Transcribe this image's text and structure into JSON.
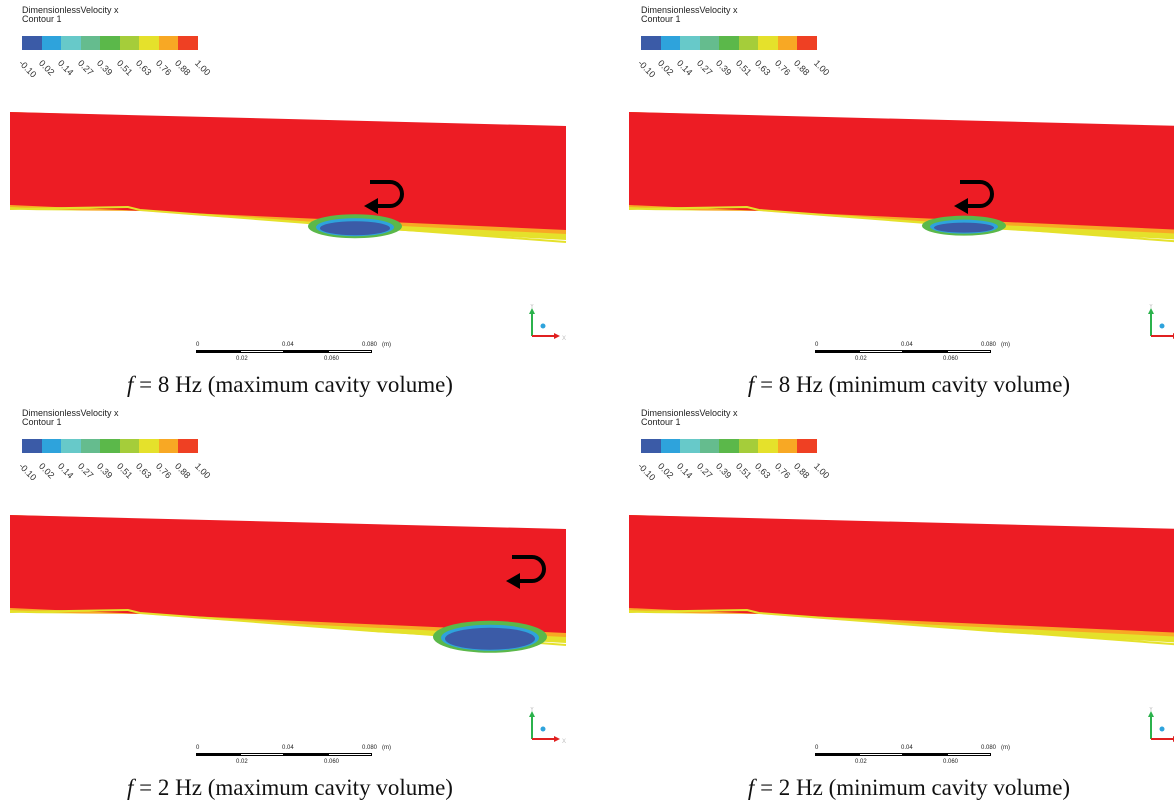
{
  "colorbar": {
    "colors": [
      "#3b5ba7",
      "#2ea3dc",
      "#67c9c9",
      "#65bc8e",
      "#5bb84a",
      "#a5cd3a",
      "#e5e12b",
      "#f8a824",
      "#ef4023"
    ]
  },
  "panels": [
    {
      "legend_title": "DimensionlessVelocity x",
      "legend_subtitle": "Contour 1",
      "ticks": [
        "-0.10",
        "0.02",
        "0.14",
        "0.27",
        "0.39",
        "0.51",
        "0.63",
        "0.76",
        "0.88",
        "1.00"
      ],
      "scale_top": [
        "0",
        "0.04",
        "0.080",
        "(m)"
      ],
      "scale_bottom": [
        "0.02",
        "0.060"
      ],
      "caption_f": "f",
      "caption_text": " = 8 Hz (maximum cavity volume)",
      "arrow_icon": "return-arrow-icon",
      "cavity": "large"
    },
    {
      "legend_title": "DimensionlessVelocity x",
      "legend_subtitle": "Contour 1",
      "ticks": [
        "-0.10",
        "0.02",
        "0.14",
        "0.27",
        "0.39",
        "0.51",
        "0.63",
        "0.76",
        "0.88",
        "1.00"
      ],
      "scale_top": [
        "0",
        "0.04",
        "0.080",
        "(m)"
      ],
      "scale_bottom": [
        "0.02",
        "0.060"
      ],
      "caption_f": "f",
      "caption_text": " = 8 Hz (minimum cavity volume)",
      "arrow_icon": "return-arrow-icon",
      "cavity": "medium"
    },
    {
      "legend_title": "DimensionlessVelocity x",
      "legend_subtitle": "Contour 1",
      "ticks": [
        "-0.10",
        "0.02",
        "0.14",
        "0.27",
        "0.39",
        "0.51",
        "0.63",
        "0.76",
        "0.88",
        "1.00"
      ],
      "scale_top": [
        "0",
        "0.04",
        "0.080",
        "(m)"
      ],
      "scale_bottom": [
        "0.02",
        "0.060"
      ],
      "caption_f": "f",
      "caption_text": " = 2 Hz (maximum cavity volume)",
      "arrow_icon": "return-arrow-icon",
      "cavity": "downstream"
    },
    {
      "legend_title": "DimensionlessVelocity x",
      "legend_subtitle": "Contour 1",
      "ticks": [
        "-0.10",
        "0.02",
        "0.14",
        "0.27",
        "0.39",
        "0.51",
        "0.63",
        "0.76",
        "0.88",
        "1.00"
      ],
      "scale_top": [
        "0",
        "0.04",
        "0.080",
        "(m)"
      ],
      "scale_bottom": [
        "0.02",
        "0.060"
      ],
      "caption_f": "f",
      "caption_text": " = 2 Hz (minimum cavity volume)",
      "arrow_icon": "",
      "cavity": "none"
    }
  ],
  "axis_labels": {
    "y": "Y",
    "x": "X"
  }
}
